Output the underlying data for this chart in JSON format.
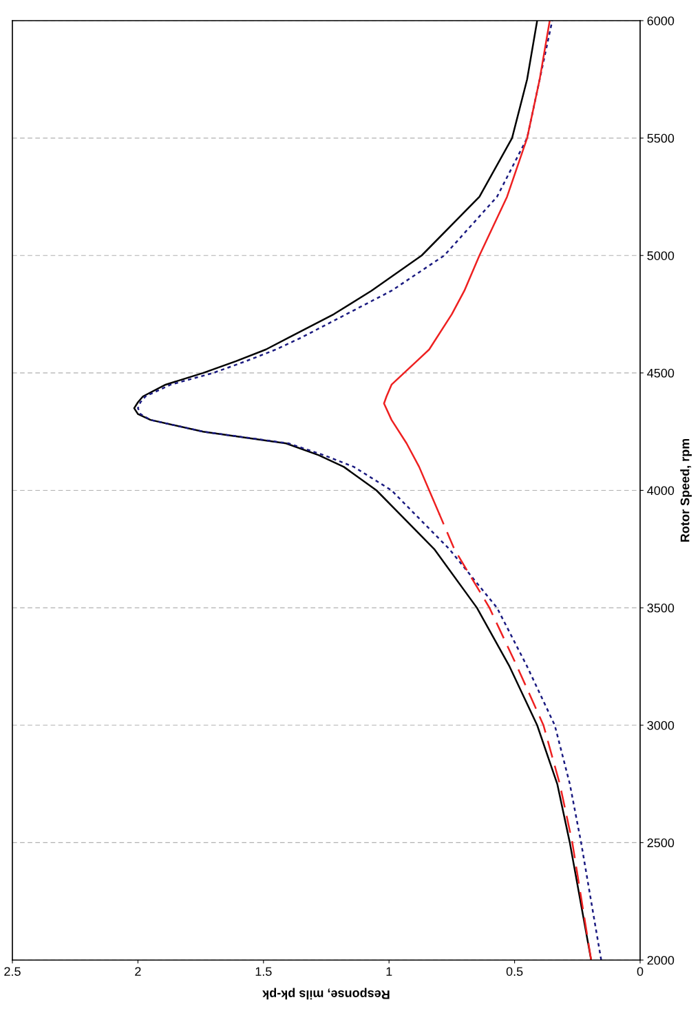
{
  "chart_data": {
    "type": "line",
    "xlabel": "Response, mils pk-pk",
    "ylabel": "Rotor Speed, rpm",
    "xlim": [
      2.5,
      0
    ],
    "xticks": [
      0,
      0.5,
      1,
      1.5,
      2,
      2.5
    ],
    "ylim": [
      2000,
      6000
    ],
    "yticks": [
      2000,
      2500,
      3000,
      3500,
      4000,
      4500,
      5000,
      5500,
      6000
    ],
    "grid": "y",
    "legend": false,
    "series": [
      {
        "color": "#000000",
        "line_style": "solid",
        "values": [
          2000,
          2500,
          2750,
          3000,
          3250,
          3500,
          3750,
          4000,
          4100,
          4150,
          4200,
          4250,
          4300,
          4325,
          4350,
          4375,
          4400,
          4450,
          4500,
          4550,
          4600,
          4650,
          4750,
          4850,
          5000,
          5250,
          5500,
          5750,
          6000
        ],
        "x": [
          0.195,
          0.28,
          0.33,
          0.41,
          0.52,
          0.65,
          0.82,
          1.05,
          1.18,
          1.28,
          1.41,
          1.74,
          1.95,
          2.0,
          2.015,
          2.0,
          1.98,
          1.89,
          1.74,
          1.61,
          1.49,
          1.4,
          1.22,
          1.07,
          0.87,
          0.64,
          0.51,
          0.45,
          0.41
        ]
      },
      {
        "color": "#1a1a80",
        "line_style": "dotted",
        "values": [
          2000,
          2500,
          2750,
          3000,
          3250,
          3500,
          3750,
          4000,
          4100,
          4150,
          4200,
          4250,
          4300,
          4325,
          4350,
          4375,
          4400,
          4450,
          4500,
          4550,
          4600,
          4650,
          4750,
          4850,
          5000,
          5250,
          5500,
          5750,
          6000
        ],
        "x": [
          0.155,
          0.235,
          0.28,
          0.34,
          0.45,
          0.57,
          0.76,
          0.99,
          1.14,
          1.26,
          1.4,
          1.74,
          1.95,
          1.99,
          2.0,
          1.99,
          1.97,
          1.87,
          1.7,
          1.57,
          1.45,
          1.35,
          1.17,
          0.99,
          0.78,
          0.57,
          0.45,
          0.4,
          0.35
        ]
      },
      {
        "color": "#ee2020",
        "line_style": "dashed",
        "values": [
          2000,
          2500,
          2750,
          3000,
          3250,
          3500,
          3750,
          3900
        ],
        "x": [
          0.195,
          0.27,
          0.32,
          0.385,
          0.49,
          0.6,
          0.74,
          0.8
        ]
      },
      {
        "color": "#ee2020",
        "line_style": "solid",
        "values": [
          3900,
          4000,
          4100,
          4200,
          4300,
          4370,
          4400,
          4450,
          4500,
          4550,
          4600,
          4750,
          4850,
          5000,
          5250,
          5500,
          5750,
          6000
        ],
        "x": [
          0.8,
          0.84,
          0.88,
          0.93,
          0.99,
          1.02,
          1.01,
          0.99,
          0.94,
          0.89,
          0.84,
          0.75,
          0.7,
          0.64,
          0.53,
          0.45,
          0.4,
          0.36
        ]
      }
    ]
  }
}
